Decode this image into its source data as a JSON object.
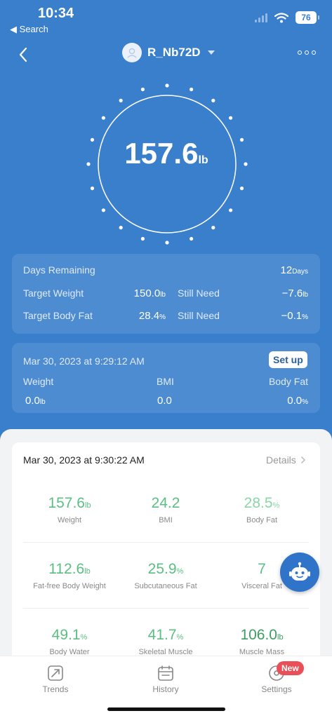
{
  "status_bar": {
    "time": "10:34",
    "back_label": "◀ Search",
    "battery": "76"
  },
  "header": {
    "username": "R_Nb72D"
  },
  "weight": {
    "value": "157.6",
    "unit": "lb"
  },
  "goal_card": {
    "days_remaining_label": "Days Remaining",
    "days_remaining_value": "12",
    "days_unit": "Days",
    "target_weight_label": "Target Weight",
    "target_weight_value": "150.0",
    "target_weight_unit": "lb",
    "still_need_label_1": "Still Need",
    "still_need_weight": "−7.6",
    "still_need_weight_unit": "lb",
    "target_body_fat_label": "Target Body Fat",
    "target_body_fat_value": "28.4",
    "target_body_fat_unit": "%",
    "still_need_label_2": "Still Need",
    "still_need_fat": "−0.1",
    "still_need_fat_unit": "%"
  },
  "initial_card": {
    "date": "Mar 30, 2023 at 9:29:12 AM",
    "setup_label": "Set up",
    "weight_label": "Weight",
    "bmi_label": "BMI",
    "body_fat_label": "Body Fat",
    "weight_value": "0.0",
    "weight_unit": "lb",
    "bmi_value": "0.0",
    "body_fat_value": "0.0",
    "body_fat_unit": "%"
  },
  "measurement": {
    "date": "Mar 30, 2023 at 9:30:22 AM",
    "details_label": "Details",
    "metrics": [
      {
        "value": "157.6",
        "unit": "lb",
        "label": "Weight"
      },
      {
        "value": "24.2",
        "unit": "",
        "label": "BMI"
      },
      {
        "value": "28.5",
        "unit": "%",
        "label": "Body Fat"
      },
      {
        "value": "112.6",
        "unit": "lb",
        "label": "Fat-free Body Weight"
      },
      {
        "value": "25.9",
        "unit": "%",
        "label": "Subcutaneous Fat"
      },
      {
        "value": "7",
        "unit": "",
        "label": "Visceral Fat"
      },
      {
        "value": "49.1",
        "unit": "%",
        "label": "Body Water"
      },
      {
        "value": "41.7",
        "unit": "%",
        "label": "Skeletal Muscle"
      },
      {
        "value": "106.0",
        "unit": "lb",
        "label": "Muscle Mass"
      }
    ]
  },
  "tabs": [
    {
      "label": "Trends"
    },
    {
      "label": "History"
    },
    {
      "label": "Settings"
    }
  ],
  "settings_badge": "New",
  "colors": {
    "brand_blue": "#3a7fcc",
    "green": "#5bbf84",
    "light_green": "#8ad6a7",
    "dark_green": "#3f9d63",
    "badge_red": "#e94f56"
  }
}
